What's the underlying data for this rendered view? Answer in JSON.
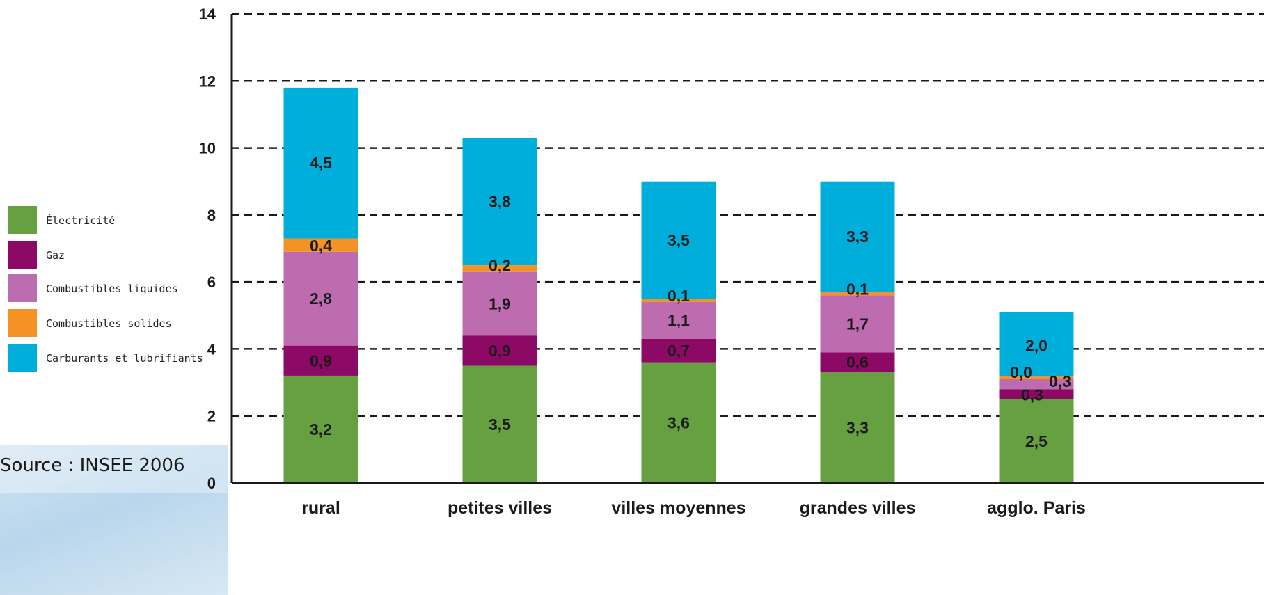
{
  "source_note": "Source : INSEE 2006",
  "chart_data": {
    "type": "bar",
    "stacked": true,
    "categories": [
      "rural",
      "petites villes",
      "villes moyennes",
      "grandes villes",
      "agglo. Paris"
    ],
    "series": [
      {
        "name": "Électricité",
        "color": "#66a040",
        "values": [
          3.2,
          3.5,
          3.6,
          3.3,
          2.5
        ],
        "labels": [
          "3,2",
          "3,5",
          "3,6",
          "3,3",
          "2,5"
        ]
      },
      {
        "name": "Gaz",
        "color": "#8c0a66",
        "values": [
          0.9,
          0.9,
          0.7,
          0.6,
          0.3
        ],
        "labels": [
          "0,9",
          "0,9",
          "0,7",
          "0,6",
          "0,3"
        ]
      },
      {
        "name": "Combustibles liquides",
        "color": "#bd6cb0",
        "values": [
          2.8,
          1.9,
          1.1,
          1.7,
          0.3
        ],
        "labels": [
          "2,8",
          "1,9",
          "1,1",
          "1,7",
          "0,3"
        ]
      },
      {
        "name": "Combustibles solides",
        "color": "#f59225",
        "values": [
          0.4,
          0.2,
          0.1,
          0.1,
          0.0
        ],
        "labels": [
          "0,4",
          "0,2",
          "0,1",
          "0,1",
          "0,0"
        ]
      },
      {
        "name": "Carburants et lubrifiants",
        "color": "#00aedb",
        "values": [
          4.5,
          3.8,
          3.5,
          3.3,
          2.0
        ],
        "labels": [
          "4,5",
          "3,8",
          "3,5",
          "3,3",
          "2,0"
        ]
      }
    ],
    "ylim": [
      0,
      14
    ],
    "yticks": [
      0,
      2,
      4,
      6,
      8,
      10,
      12,
      14
    ],
    "grid": "dashed-horizontal",
    "legend": "left"
  }
}
